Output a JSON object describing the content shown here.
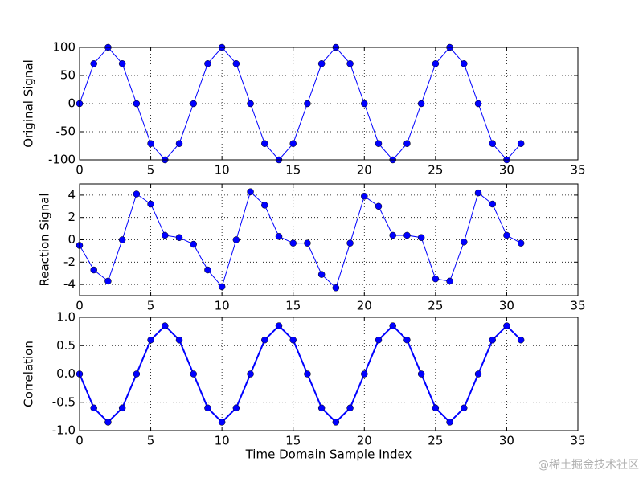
{
  "chart_data": [
    {
      "type": "line",
      "ylabel": "Original Signal",
      "x": [
        0,
        1,
        2,
        3,
        4,
        5,
        6,
        7,
        8,
        9,
        10,
        11,
        12,
        13,
        14,
        15,
        16,
        17,
        18,
        19,
        20,
        21,
        22,
        23,
        24,
        25,
        26,
        27,
        28,
        29,
        30,
        31
      ],
      "series": [
        {
          "color": "#0000ff",
          "linewidth": 1,
          "values": [
            0,
            71,
            100,
            71,
            0,
            -71,
            -100,
            -71,
            0,
            71,
            100,
            71,
            0,
            -71,
            -100,
            -71,
            0,
            71,
            100,
            71,
            0,
            -71,
            -100,
            -71,
            0,
            71,
            100,
            71,
            0,
            -71,
            -100,
            -71
          ]
        }
      ],
      "xlim": [
        0,
        35
      ],
      "xticks": [
        0,
        5,
        10,
        15,
        20,
        25,
        30,
        35
      ],
      "ylim": [
        -100,
        100
      ],
      "yticks": [
        -100,
        -50,
        0,
        50,
        100
      ],
      "grid": true
    },
    {
      "type": "line",
      "ylabel": "Reaction Signal",
      "x": [
        0,
        1,
        2,
        3,
        4,
        5,
        6,
        7,
        8,
        9,
        10,
        11,
        12,
        13,
        14,
        15,
        16,
        17,
        18,
        19,
        20,
        21,
        22,
        23,
        24,
        25,
        26,
        27,
        28,
        29,
        30,
        31
      ],
      "series": [
        {
          "color": "#0000ff",
          "linewidth": 1,
          "values": [
            -0.5,
            -2.7,
            -3.7,
            0,
            4.1,
            3.2,
            0.4,
            0.2,
            -0.4,
            -2.7,
            -4.2,
            0,
            4.3,
            3.1,
            0.3,
            -0.3,
            -0.3,
            -3.1,
            -4.3,
            -0.3,
            3.9,
            3.0,
            0.4,
            0.4,
            0.2,
            -3.5,
            -3.7,
            -0.2,
            4.2,
            3.2,
            0.4,
            -0.3
          ]
        }
      ],
      "xlim": [
        0,
        35
      ],
      "xticks": [
        0,
        5,
        10,
        15,
        20,
        25,
        30,
        35
      ],
      "ylim": [
        -5,
        5
      ],
      "yticks": [
        -4,
        -2,
        0,
        2,
        4
      ],
      "grid": true
    },
    {
      "type": "line",
      "ylabel": "Correlation",
      "xlabel": "Time Domain Sample Index",
      "x": [
        0,
        1,
        2,
        3,
        4,
        5,
        6,
        7,
        8,
        9,
        10,
        11,
        12,
        13,
        14,
        15,
        16,
        17,
        18,
        19,
        20,
        21,
        22,
        23,
        24,
        25,
        26,
        27,
        28,
        29,
        30,
        31
      ],
      "series": [
        {
          "color": "#0000ff",
          "linewidth": 2,
          "values": [
            0,
            -0.6,
            -0.85,
            -0.6,
            0,
            0.6,
            0.85,
            0.6,
            0,
            -0.6,
            -0.85,
            -0.6,
            0,
            0.6,
            0.85,
            0.6,
            0,
            -0.6,
            -0.85,
            -0.6,
            0,
            0.6,
            0.85,
            0.6,
            0,
            -0.6,
            -0.85,
            -0.6,
            0,
            0.6,
            0.85,
            0.6
          ]
        }
      ],
      "xlim": [
        0,
        35
      ],
      "xticks": [
        0,
        5,
        10,
        15,
        20,
        25,
        30,
        35
      ],
      "ylim": [
        -1,
        1
      ],
      "yticks": [
        {
          "value": -1,
          "label": "-1.0"
        },
        {
          "value": -0.5,
          "label": "-0.5"
        },
        {
          "value": 0,
          "label": "0.0"
        },
        {
          "value": 0.5,
          "label": "0.5"
        },
        {
          "value": 1,
          "label": "1.0"
        }
      ],
      "grid": true
    }
  ],
  "watermark": "@稀土掘金技术社区"
}
